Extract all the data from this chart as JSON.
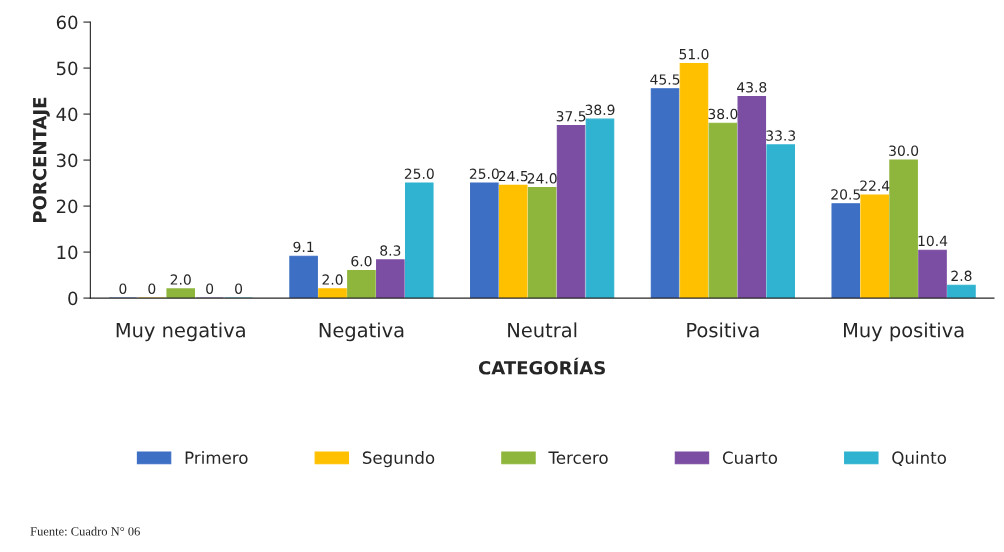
{
  "chart_data": {
    "type": "bar",
    "xlabel": "CATEGORÍAS",
    "ylabel": "PORCENTAJE",
    "categories": [
      "Muy negativa",
      "Negativa",
      "Neutral",
      "Positiva",
      "Muy positiva"
    ],
    "series": [
      {
        "name": "Primero",
        "color": "#3d6fc4",
        "values": [
          0,
          9.1,
          25.0,
          45.5,
          20.5
        ],
        "value_labels": [
          "0",
          "9.1",
          "25.0",
          "45.5",
          "20.5"
        ]
      },
      {
        "name": "Segundo",
        "color": "#ffc000",
        "values": [
          0,
          2.0,
          24.5,
          51.0,
          22.4
        ],
        "value_labels": [
          "0",
          "2.0",
          "24.5",
          "51.0",
          "22.4"
        ]
      },
      {
        "name": "Tercero",
        "color": "#8fb63c",
        "values": [
          2.0,
          6.0,
          24.0,
          38.0,
          30.0
        ],
        "value_labels": [
          "2.0",
          "6.0",
          "24.0",
          "38.0",
          "30.0"
        ]
      },
      {
        "name": "Cuarto",
        "color": "#7b4ea3",
        "values": [
          0,
          8.3,
          37.5,
          43.8,
          10.4
        ],
        "value_labels": [
          "0",
          "8.3",
          "37.5",
          "43.8",
          "10.4"
        ]
      },
      {
        "name": "Quinto",
        "color": "#2fb3d0",
        "values": [
          0,
          25.0,
          38.9,
          33.3,
          2.8
        ],
        "value_labels": [
          "0",
          "25.0",
          "38.9",
          "33.3",
          "2.8"
        ]
      }
    ],
    "ylim": [
      0,
      60
    ],
    "yticks": [
      0,
      10,
      20,
      30,
      40,
      50,
      60
    ],
    "grid": false,
    "legend": "bottom",
    "annotations": [
      "Fuente: Cuadro N° 06"
    ]
  }
}
